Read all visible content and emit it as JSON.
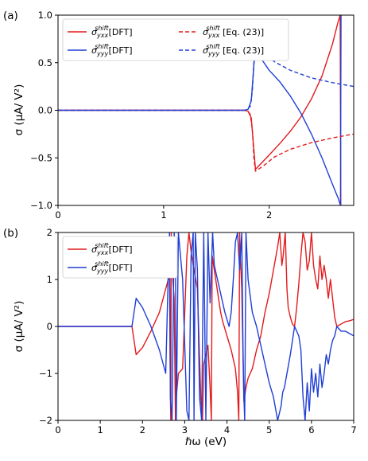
{
  "chart_data": [
    {
      "panel_label": "(a)",
      "type": "line",
      "ylabel": "σ (μA/ V²)",
      "xlim": [
        0,
        2.8
      ],
      "ylim": [
        -1.0,
        1.0
      ],
      "x_ticks": [
        0,
        1,
        2
      ],
      "y_ticks": [
        -1.0,
        -0.5,
        0.0,
        0.5,
        1.0
      ],
      "x_tick_labels": [
        "0",
        "1",
        "2"
      ],
      "y_tick_labels": [
        "−1.0",
        "−0.5",
        "0.0",
        "0.5",
        "1.0"
      ],
      "legend_position": "top-left",
      "series": [
        {
          "name": "σ_yxx^shift[DFT]",
          "legend": {
            "sym": "σ",
            "sub": "yxx",
            "sup": "shift",
            "tail": "[DFT]"
          },
          "color": "#e41a1c",
          "dash": "solid",
          "x": [
            0,
            1.76,
            1.8,
            1.83,
            1.855,
            1.87,
            2.0,
            2.1,
            2.2,
            2.3,
            2.4,
            2.5,
            2.6,
            2.65,
            2.672,
            2.678
          ],
          "y": [
            0,
            0,
            -0.01,
            -0.08,
            -0.42,
            -0.62,
            -0.47,
            -0.35,
            -0.22,
            -0.07,
            0.12,
            0.36,
            0.7,
            0.92,
            1.0,
            -1.0
          ]
        },
        {
          "name": "σ_yyy^shift[DFT]",
          "legend": {
            "sym": "σ",
            "sub": "yyy",
            "sup": "shift",
            "tail": "[DFT]"
          },
          "color": "#1f3fd6",
          "dash": "solid",
          "x": [
            0,
            1.76,
            1.8,
            1.83,
            1.855,
            1.87,
            2.0,
            2.1,
            2.2,
            2.3,
            2.4,
            2.5,
            2.6,
            2.655,
            2.675,
            2.68
          ],
          "y": [
            0,
            0,
            0.01,
            0.1,
            0.48,
            0.63,
            0.42,
            0.3,
            0.15,
            -0.03,
            -0.25,
            -0.5,
            -0.78,
            -0.93,
            -1.0,
            1.0
          ]
        },
        {
          "name": "σ_yxx^shift [Eq. (23)]",
          "legend": {
            "sym": "σ",
            "sub": "yxx",
            "sup": "shift",
            "tail": " [Eq. (23)]"
          },
          "color": "#e41a1c",
          "dash": "dashed",
          "x": [
            0,
            1.78,
            1.82,
            1.84,
            1.855,
            1.87,
            1.95,
            2.05,
            2.2,
            2.4,
            2.6,
            2.8
          ],
          "y": [
            0,
            0,
            -0.04,
            -0.2,
            -0.5,
            -0.64,
            -0.58,
            -0.49,
            -0.41,
            -0.34,
            -0.29,
            -0.25
          ]
        },
        {
          "name": "σ_yyy^shift [Eq. (23)]",
          "legend": {
            "sym": "σ",
            "sub": "yyy",
            "sup": "shift",
            "tail": " [Eq. (23)]"
          },
          "color": "#1f3fd6",
          "dash": "dashed",
          "x": [
            0,
            1.78,
            1.82,
            1.84,
            1.855,
            1.87,
            1.95,
            2.05,
            2.2,
            2.4,
            2.6,
            2.8
          ],
          "y": [
            0,
            0,
            0.04,
            0.2,
            0.5,
            0.66,
            0.6,
            0.51,
            0.42,
            0.34,
            0.29,
            0.25
          ]
        }
      ]
    },
    {
      "panel_label": "(b)",
      "type": "line",
      "xlabel": "ℏω (eV)",
      "ylabel": "σ (μA/ V²)",
      "xlim": [
        0,
        7
      ],
      "ylim": [
        -2,
        2
      ],
      "x_ticks": [
        0,
        1,
        2,
        3,
        4,
        5,
        6,
        7
      ],
      "y_ticks": [
        -2,
        -1,
        0,
        1,
        2
      ],
      "x_tick_labels": [
        "0",
        "1",
        "2",
        "3",
        "4",
        "5",
        "6",
        "7"
      ],
      "y_tick_labels": [
        "−2",
        "−1",
        "0",
        "1",
        "2"
      ],
      "legend_position": "top-left",
      "series": [
        {
          "name": "σ_yxx^shift[DFT]",
          "legend": {
            "sym": "σ",
            "sub": "yxx",
            "sup": "shift",
            "tail": "[DFT]"
          },
          "color": "#e41a1c",
          "dash": "solid",
          "x": [
            0,
            1.75,
            1.8,
            1.85,
            2.0,
            2.2,
            2.4,
            2.55,
            2.64,
            2.66,
            2.67,
            2.68,
            2.7,
            2.75,
            2.78,
            2.8,
            2.85,
            2.95,
            3.05,
            3.1,
            3.15,
            3.2,
            3.3,
            3.38,
            3.42,
            3.45,
            3.5,
            3.55,
            3.6,
            3.63,
            3.65,
            3.7,
            3.75,
            3.8,
            3.85,
            3.9,
            4.0,
            4.1,
            4.2,
            4.25,
            4.28,
            4.3,
            4.32,
            4.35,
            4.4,
            4.45,
            4.5,
            4.55,
            4.6,
            4.65,
            4.7,
            4.8,
            4.9,
            5.0,
            5.1,
            5.2,
            5.25,
            5.3,
            5.33,
            5.38,
            5.42,
            5.45,
            5.5,
            5.55,
            5.6,
            5.65,
            5.7,
            5.75,
            5.8,
            5.85,
            5.9,
            5.95,
            6.0,
            6.05,
            6.1,
            6.15,
            6.2,
            6.25,
            6.3,
            6.35,
            6.4,
            6.45,
            6.5,
            6.55,
            6.6,
            6.7,
            6.8,
            6.9,
            7.0
          ],
          "y": [
            0,
            0,
            -0.3,
            -0.6,
            -0.45,
            -0.1,
            0.3,
            0.8,
            1.1,
            -1.5,
            -2,
            2,
            1.2,
            0.6,
            -2,
            -1.5,
            -1.0,
            -0.9,
            1.5,
            2,
            1.6,
            1.3,
            0.8,
            -1.5,
            -2,
            -0.8,
            -0.6,
            -0.4,
            -1.3,
            -2,
            1.5,
            1.2,
            0.9,
            0.6,
            0.3,
            0.1,
            -0.2,
            -0.5,
            -0.9,
            -1.4,
            -2,
            2,
            1.4,
            0.8,
            -1.6,
            -1.3,
            -1.1,
            -1.0,
            -0.9,
            -0.7,
            -0.5,
            -0.2,
            0.3,
            0.7,
            1.2,
            1.7,
            2,
            1.3,
            1.5,
            2,
            0.8,
            0.4,
            0.2,
            0.05,
            0.0,
            0.4,
            0.9,
            1.5,
            2,
            1.8,
            1.2,
            1.4,
            2,
            1.3,
            1.0,
            0.8,
            1.5,
            1.0,
            1.3,
            1.0,
            0.6,
            1.0,
            0.6,
            0.2,
            0.0,
            0.05,
            0.1,
            0.12,
            0.15
          ]
        },
        {
          "name": "σ_yyy^shift[DFT]",
          "legend": {
            "sym": "σ",
            "sub": "yyy",
            "sup": "shift",
            "tail": "[DFT]"
          },
          "color": "#1f3fd6",
          "dash": "solid",
          "x": [
            0,
            1.75,
            1.8,
            1.85,
            2.0,
            2.2,
            2.4,
            2.55,
            2.62,
            2.64,
            2.66,
            2.7,
            2.75,
            2.78,
            2.8,
            2.85,
            2.95,
            3.05,
            3.1,
            3.15,
            3.2,
            3.22,
            3.25,
            3.3,
            3.35,
            3.4,
            3.45,
            3.5,
            3.55,
            3.6,
            3.63,
            3.66,
            3.7,
            3.8,
            3.85,
            3.9,
            3.95,
            4.0,
            4.05,
            4.1,
            4.15,
            4.2,
            4.25,
            4.3,
            4.35,
            4.38,
            4.4,
            4.42,
            4.45,
            4.5,
            4.6,
            4.7,
            4.8,
            4.9,
            5.0,
            5.1,
            5.2,
            5.28,
            5.32,
            5.36,
            5.4,
            5.5,
            5.6,
            5.7,
            5.75,
            5.8,
            5.85,
            5.9,
            5.95,
            6.0,
            6.05,
            6.1,
            6.15,
            6.2,
            6.25,
            6.3,
            6.35,
            6.4,
            6.45,
            6.5,
            6.55,
            6.6,
            6.7,
            6.8,
            6.9,
            7.0
          ],
          "y": [
            0,
            0,
            0.3,
            0.6,
            0.4,
            0.0,
            -0.5,
            -1.0,
            1.5,
            2,
            -1.5,
            -2,
            2,
            1.5,
            -2,
            2,
            1.0,
            -1.8,
            -2,
            1.5,
            2,
            -2,
            2,
            1.2,
            -1.5,
            -2,
            2,
            -2,
            2,
            0.5,
            1.2,
            2,
            1.3,
            0.9,
            0.7,
            0.5,
            0.3,
            0.15,
            0.0,
            0.3,
            1.0,
            1.8,
            2,
            1.2,
            2,
            -0.5,
            -1.5,
            -2,
            2,
            1.0,
            0.3,
            0.0,
            -0.4,
            -0.8,
            -1.2,
            -1.5,
            -2,
            -1.7,
            -1.4,
            -1.3,
            -1.1,
            -0.6,
            0.0,
            -0.2,
            -0.5,
            -1.5,
            -2,
            -1.2,
            -1.8,
            -0.9,
            -1.4,
            -1.0,
            -1.5,
            -0.8,
            -1.3,
            -1.0,
            -0.6,
            -0.8,
            -0.5,
            -0.3,
            -0.2,
            0.0,
            -0.1,
            -0.1,
            -0.15,
            -0.2
          ]
        }
      ]
    }
  ]
}
